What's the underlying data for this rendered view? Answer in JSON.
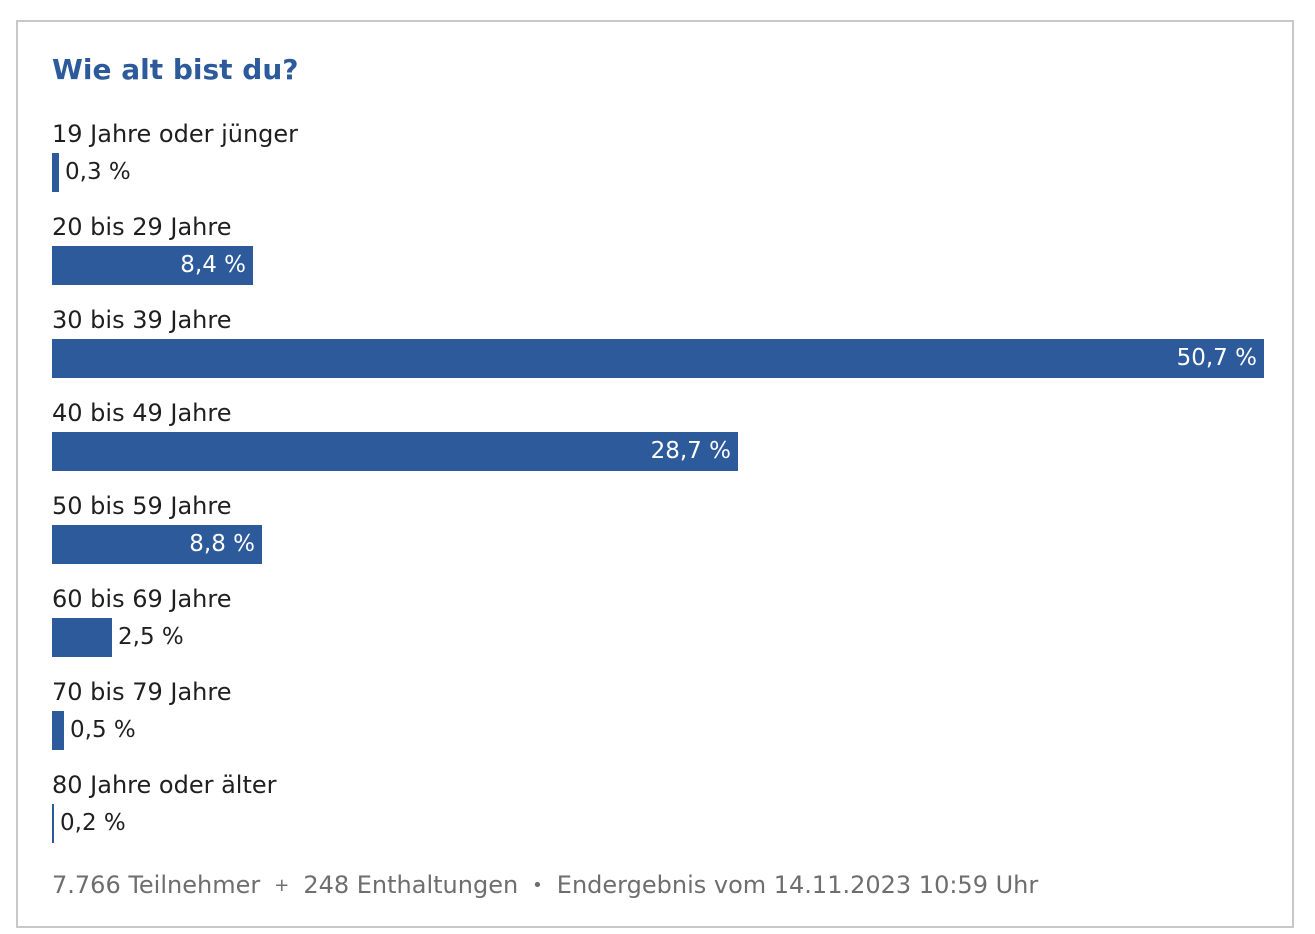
{
  "poll": {
    "question": "Wie alt bist du?"
  },
  "chart_data": {
    "type": "bar",
    "orientation": "horizontal",
    "title": "Wie alt bist du?",
    "unit": "%",
    "categories": [
      "19 Jahre oder jünger",
      "20 bis 29 Jahre",
      "30 bis 39 Jahre",
      "40 bis 49 Jahre",
      "50 bis 59 Jahre",
      "60 bis 69 Jahre",
      "70 bis 79 Jahre",
      "80 Jahre oder älter"
    ],
    "values": [
      0.3,
      8.4,
      50.7,
      28.7,
      8.8,
      2.5,
      0.5,
      0.2
    ],
    "labels": [
      "0,3 %",
      "8,4 %",
      "50,7 %",
      "28,7 %",
      "8,8 %",
      "2,5 %",
      "0,5 %",
      "0,2 %"
    ],
    "xlim": [
      0,
      50.7
    ],
    "bar_color": "#2c5a9a"
  },
  "footer": {
    "participants": "7.766 Teilnehmer",
    "sep1": "+",
    "abstentions": "248 Enthaltungen",
    "sep2": "•",
    "result": "Endergebnis vom 14.11.2023 10:59 Uhr"
  },
  "colors": {
    "accent": "#2c5a9a",
    "border": "#c8c8c8",
    "footer_text": "#6e6e6e"
  }
}
